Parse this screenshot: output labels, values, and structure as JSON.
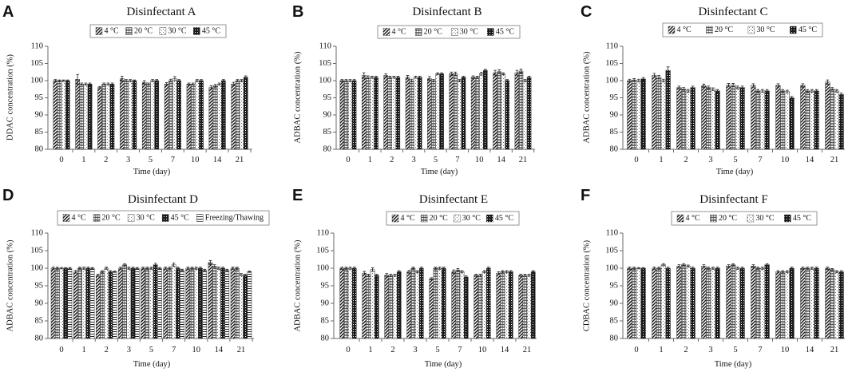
{
  "chart_data": [
    {
      "panel": "A",
      "type": "bar",
      "title": "Disinfectant A",
      "xlabel": "Time (day)",
      "ylabel": "DDAC concentration (%)",
      "categories": [
        "0",
        "1",
        "2",
        "3",
        "5",
        "7",
        "10",
        "14",
        "21"
      ],
      "ylim": [
        80,
        110
      ],
      "yticks": [
        80,
        85,
        90,
        95,
        100,
        105,
        110
      ],
      "series": [
        {
          "name": "4 °C",
          "values": [
            100,
            100.4,
            98,
            100.6,
            99.5,
            99,
            99,
            98,
            99
          ],
          "errors": [
            0.3,
            1.4,
            0.3,
            0.7,
            0.5,
            0.4,
            0.3,
            0.5,
            0.5
          ]
        },
        {
          "name": "20 °C",
          "values": [
            100,
            99,
            99,
            100,
            99,
            100,
            99,
            98.5,
            100
          ],
          "errors": [
            0.2,
            0.3,
            0.3,
            0.3,
            0.3,
            0.4,
            0.3,
            0.4,
            0.3
          ]
        },
        {
          "name": "30 °C",
          "values": [
            100,
            99,
            99,
            100,
            100,
            100.6,
            100,
            99,
            100
          ],
          "errors": [
            0.2,
            0.3,
            0.3,
            0.3,
            0.3,
            0.6,
            0.3,
            0.3,
            0.3
          ]
        },
        {
          "name": "45 °C",
          "values": [
            100,
            99,
            99,
            100,
            100,
            100,
            100,
            100,
            101
          ],
          "errors": [
            0.2,
            0.3,
            0.3,
            0.2,
            0.3,
            0.3,
            0.3,
            0.3,
            0.4
          ]
        }
      ]
    },
    {
      "panel": "B",
      "type": "bar",
      "title": "Disinfectant B",
      "xlabel": "Time (day)",
      "ylabel": "ADBAC concentration (%)",
      "categories": [
        "0",
        "1",
        "2",
        "3",
        "5",
        "7",
        "10",
        "14",
        "21"
      ],
      "ylim": [
        80,
        110
      ],
      "yticks": [
        80,
        85,
        90,
        95,
        100,
        105,
        110
      ],
      "series": [
        {
          "name": "4 °C",
          "values": [
            100,
            101.5,
            101.5,
            101,
            100.6,
            102,
            101,
            102.3,
            102.3
          ],
          "errors": [
            0.3,
            0.8,
            0.5,
            0.5,
            0.6,
            0.5,
            0.4,
            0.7,
            0.7
          ]
        },
        {
          "name": "20 °C",
          "values": [
            100,
            101,
            101,
            100,
            100,
            102,
            101,
            102.6,
            102.8
          ],
          "errors": [
            0.3,
            0.4,
            0.3,
            0.4,
            0.3,
            0.5,
            0.3,
            0.6,
            0.6
          ]
        },
        {
          "name": "30 °C",
          "values": [
            100,
            101,
            101,
            101,
            102,
            100,
            102,
            102,
            100
          ],
          "errors": [
            0.3,
            0.3,
            0.3,
            0.3,
            0.3,
            0.3,
            0.4,
            0.3,
            0.3
          ]
        },
        {
          "name": "45 °C",
          "values": [
            100,
            101,
            101,
            101,
            102,
            101,
            103,
            100,
            101
          ],
          "errors": [
            0.3,
            0.3,
            0.3,
            0.3,
            0.3,
            0.3,
            0.3,
            0.3,
            0.3
          ]
        }
      ]
    },
    {
      "panel": "C",
      "type": "bar",
      "title": "Disinfectant C",
      "xlabel": "Time (day)",
      "ylabel": "ADBAC concentration (%)",
      "categories": [
        "0",
        "1",
        "2",
        "3",
        "5",
        "7",
        "10",
        "14",
        "21"
      ],
      "ylim": [
        80,
        110
      ],
      "yticks": [
        80,
        85,
        90,
        95,
        100,
        105,
        110
      ],
      "series": [
        {
          "name": "4 °C",
          "values": [
            100,
            101.5,
            98,
            98.5,
            98.7,
            98.6,
            98.6,
            98.6,
            99.6
          ],
          "errors": [
            0.4,
            0.6,
            0.4,
            0.5,
            0.5,
            0.5,
            0.5,
            0.5,
            0.6
          ]
        },
        {
          "name": "20 °C",
          "values": [
            100.2,
            101,
            97.6,
            98,
            98.7,
            97,
            97,
            97,
            97.6
          ],
          "errors": [
            0.4,
            0.5,
            0.4,
            0.4,
            0.5,
            0.4,
            0.4,
            0.4,
            0.4
          ]
        },
        {
          "name": "30 °C",
          "values": [
            100,
            100,
            97,
            97.5,
            98,
            97,
            96.8,
            97,
            97
          ],
          "errors": [
            0.4,
            0.4,
            0.4,
            0.4,
            0.4,
            0.4,
            0.4,
            0.4,
            0.4
          ]
        },
        {
          "name": "45 °C",
          "values": [
            100.5,
            103,
            98,
            97,
            98,
            97,
            95,
            97,
            96
          ],
          "errors": [
            0.4,
            1.0,
            0.4,
            0.4,
            0.4,
            0.4,
            0.4,
            0.4,
            0.4
          ]
        }
      ]
    },
    {
      "panel": "D",
      "type": "bar",
      "title": "Disinfectant D",
      "xlabel": "Time (day)",
      "ylabel": "ADBAC concentration (%)",
      "categories": [
        "0",
        "1",
        "2",
        "3",
        "5",
        "7",
        "10",
        "14",
        "21"
      ],
      "ylim": [
        80,
        110
      ],
      "yticks": [
        80,
        85,
        90,
        95,
        100,
        105,
        110
      ],
      "series": [
        {
          "name": "4 °C",
          "values": [
            100,
            99,
            98,
            100,
            100,
            100,
            100,
            101.6,
            100
          ],
          "errors": [
            0.3,
            0.4,
            0.3,
            0.3,
            0.3,
            0.3,
            0.3,
            0.6,
            0.3
          ]
        },
        {
          "name": "20 °C",
          "values": [
            100,
            100,
            99,
            101,
            100,
            100,
            100,
            100.6,
            100
          ],
          "errors": [
            0.3,
            0.3,
            0.3,
            0.3,
            0.3,
            0.3,
            0.3,
            0.4,
            0.3
          ]
        },
        {
          "name": "30 °C",
          "values": [
            100,
            100,
            100,
            100,
            100,
            101,
            100,
            100,
            98.2
          ],
          "errors": [
            0.2,
            0.3,
            0.3,
            0.3,
            0.3,
            0.5,
            0.3,
            0.3,
            0.3
          ]
        },
        {
          "name": "45 °C",
          "values": [
            100,
            100,
            99,
            100,
            101,
            100,
            100,
            100,
            98
          ],
          "errors": [
            0.2,
            0.3,
            0.3,
            0.3,
            0.4,
            0.3,
            0.3,
            0.3,
            0.3
          ]
        },
        {
          "name": "Freezing/Thawing",
          "values": [
            100,
            100,
            99,
            100,
            100,
            99.5,
            99.5,
            99.5,
            99
          ],
          "errors": [
            0.2,
            0.2,
            0.2,
            0.2,
            0.2,
            0.2,
            0.2,
            0.2,
            0.2
          ]
        }
      ]
    },
    {
      "panel": "E",
      "type": "bar",
      "title": "Disinfectant E",
      "xlabel": "Time (day)",
      "ylabel": "ADBAC concentration (%)",
      "categories": [
        "0",
        "1",
        "2",
        "3",
        "5",
        "7",
        "10",
        "14",
        "21"
      ],
      "ylim": [
        80,
        110
      ],
      "yticks": [
        80,
        85,
        90,
        95,
        100,
        105,
        110
      ],
      "series": [
        {
          "name": "4 °C",
          "values": [
            100,
            98.6,
            98,
            99,
            97,
            99,
            98,
            98.6,
            98
          ],
          "errors": [
            0.3,
            0.5,
            0.5,
            0.4,
            0.3,
            0.5,
            0.3,
            0.4,
            0.3
          ]
        },
        {
          "name": "20 °C",
          "values": [
            100,
            98,
            98,
            100,
            100,
            99.5,
            98,
            99,
            98
          ],
          "errors": [
            0.3,
            0.3,
            0.3,
            0.3,
            0.3,
            0.4,
            0.3,
            0.3,
            0.3
          ]
        },
        {
          "name": "30 °C",
          "values": [
            100,
            99.6,
            98,
            99,
            100,
            99,
            99,
            99,
            98
          ],
          "errors": [
            0.3,
            0.5,
            0.3,
            0.3,
            0.3,
            0.3,
            0.3,
            0.3,
            0.3
          ]
        },
        {
          "name": "45 °C",
          "values": [
            100,
            98,
            99,
            100,
            100,
            97.5,
            100,
            99,
            99
          ],
          "errors": [
            0.3,
            0.3,
            0.3,
            0.3,
            0.3,
            0.3,
            0.3,
            0.3,
            0.3
          ]
        }
      ]
    },
    {
      "panel": "F",
      "type": "bar",
      "title": "Disinfectant F",
      "xlabel": "Time (day)",
      "ylabel": "CDBAC concentration (%)",
      "categories": [
        "0",
        "1",
        "2",
        "3",
        "5",
        "7",
        "10",
        "14",
        "21"
      ],
      "ylim": [
        80,
        110
      ],
      "yticks": [
        80,
        85,
        90,
        95,
        100,
        105,
        110
      ],
      "series": [
        {
          "name": "4 °C",
          "values": [
            100,
            100,
            100.6,
            100.6,
            100.6,
            100.6,
            99,
            100,
            100
          ],
          "errors": [
            0.3,
            0.3,
            0.4,
            0.4,
            0.4,
            0.4,
            0.3,
            0.3,
            0.3
          ]
        },
        {
          "name": "20 °C",
          "values": [
            100,
            100,
            101,
            100,
            101,
            100,
            99,
            100,
            99.6
          ],
          "errors": [
            0.3,
            0.3,
            0.3,
            0.3,
            0.3,
            0.3,
            0.3,
            0.3,
            0.3
          ]
        },
        {
          "name": "30 °C",
          "values": [
            100,
            101,
            100.6,
            100,
            100,
            100,
            99,
            100,
            99
          ],
          "errors": [
            0.2,
            0.3,
            0.3,
            0.3,
            0.3,
            0.3,
            0.3,
            0.3,
            0.3
          ]
        },
        {
          "name": "45 °C",
          "values": [
            100,
            100,
            100,
            100,
            100,
            101,
            100,
            100,
            99
          ],
          "errors": [
            0.2,
            0.3,
            0.3,
            0.3,
            0.3,
            0.3,
            0.3,
            0.3,
            0.3
          ]
        }
      ]
    }
  ]
}
